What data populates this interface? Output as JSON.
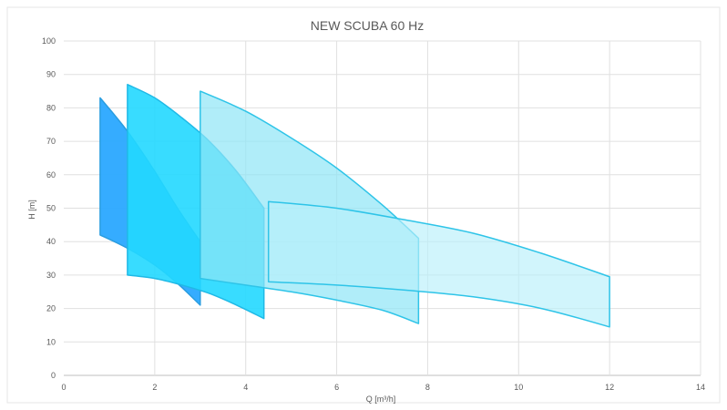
{
  "chart_data": {
    "type": "area",
    "title": "NEW SCUBA 60 Hz",
    "xlabel": "Q [m³/h]",
    "ylabel": "H [m]",
    "xlim": [
      0,
      14
    ],
    "ylim": [
      0,
      100
    ],
    "xticks": [
      0,
      2,
      4,
      6,
      8,
      10,
      12,
      14
    ],
    "yticks": [
      0,
      10,
      20,
      30,
      40,
      50,
      60,
      70,
      80,
      90,
      100
    ],
    "grid": true,
    "legend": "none",
    "series": [
      {
        "fill": "#2aa8ff",
        "stroke": "#2a9de0",
        "opacity": 0.95,
        "top": [
          [
            0.8,
            83
          ],
          [
            1.4,
            73
          ],
          [
            2.0,
            61
          ],
          [
            2.5,
            50
          ],
          [
            3.0,
            40
          ]
        ],
        "bottom": [
          [
            0.8,
            42
          ],
          [
            1.4,
            38
          ],
          [
            2.0,
            33
          ],
          [
            2.5,
            27.5
          ],
          [
            3.0,
            21
          ]
        ]
      },
      {
        "fill": "#22d8ff",
        "stroke": "#1fb9e6",
        "opacity": 0.9,
        "top": [
          [
            1.4,
            87
          ],
          [
            2.0,
            83
          ],
          [
            2.6,
            77
          ],
          [
            3.2,
            70
          ],
          [
            3.8,
            61
          ],
          [
            4.4,
            50
          ]
        ],
        "bottom": [
          [
            1.4,
            30
          ],
          [
            2.0,
            29
          ],
          [
            2.6,
            27
          ],
          [
            3.2,
            24.5
          ],
          [
            3.8,
            21
          ],
          [
            4.4,
            17
          ]
        ]
      },
      {
        "fill": "#8ee6f6",
        "stroke": "#2ec4e8",
        "opacity": 0.7,
        "top": [
          [
            3.0,
            85
          ],
          [
            4.0,
            79
          ],
          [
            5.0,
            71
          ],
          [
            6.0,
            62
          ],
          [
            7.0,
            51
          ],
          [
            7.8,
            41
          ]
        ],
        "bottom": [
          [
            3.0,
            29
          ],
          [
            4.0,
            27
          ],
          [
            5.0,
            25
          ],
          [
            6.0,
            22.5
          ],
          [
            7.0,
            19.5
          ],
          [
            7.8,
            15.5
          ]
        ]
      },
      {
        "fill": "#b8f0fa",
        "stroke": "#2ec4e8",
        "opacity": 0.65,
        "top": [
          [
            4.5,
            52
          ],
          [
            6.0,
            50
          ],
          [
            7.5,
            46.5
          ],
          [
            9.0,
            42.5
          ],
          [
            10.5,
            36.5
          ],
          [
            12.0,
            29.5
          ]
        ],
        "bottom": [
          [
            4.5,
            28
          ],
          [
            6.0,
            27
          ],
          [
            7.5,
            25.5
          ],
          [
            9.0,
            23.5
          ],
          [
            10.5,
            20
          ],
          [
            12.0,
            14.5
          ]
        ]
      }
    ]
  }
}
